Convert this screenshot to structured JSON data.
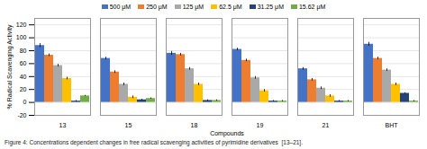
{
  "chart_data": {
    "type": "bar",
    "xlabel": "Compounds",
    "ylabel": "% Radical Scavenging Activity",
    "caption": "Figure 4: Concentrations dependent changes in free radical scavenging activities of pyrimidine derivatives  [13–21].",
    "categories": [
      "13",
      "15",
      "18",
      "19",
      "21",
      "BHT"
    ],
    "series": [
      {
        "name": "500 μM",
        "color": "#4472C4",
        "values": [
          88,
          68,
          76,
          82,
          52,
          90
        ],
        "errors": [
          3,
          2,
          3,
          2,
          2,
          3
        ]
      },
      {
        "name": "250 μM",
        "color": "#ED7D31",
        "values": [
          73,
          47,
          74,
          65,
          35,
          68
        ],
        "errors": [
          2,
          2,
          2,
          2,
          2,
          2
        ]
      },
      {
        "name": "125 μM",
        "color": "#A9A9A9",
        "values": [
          57,
          28,
          52,
          38,
          22,
          50
        ],
        "errors": [
          2,
          2,
          2,
          2,
          2,
          2
        ]
      },
      {
        "name": "62.5 μM",
        "color": "#FFC000",
        "values": [
          37,
          8,
          28,
          18,
          10,
          28
        ],
        "errors": [
          2,
          2,
          2,
          2,
          2,
          2
        ]
      },
      {
        "name": "31.25 μM",
        "color": "#264478",
        "values": [
          2,
          4,
          3,
          2,
          2,
          14
        ],
        "errors": [
          1,
          1,
          1,
          1,
          1,
          1
        ]
      },
      {
        "name": "15.62 μM",
        "color": "#70AD47",
        "values": [
          10,
          6,
          3,
          2,
          2,
          2
        ],
        "errors": [
          1,
          1,
          1,
          1,
          1,
          1
        ]
      }
    ],
    "ylim": [
      -20,
      130
    ],
    "yticks": [
      -20,
      0,
      20,
      40,
      60,
      80,
      100,
      120
    ],
    "grid": true,
    "legend": "top"
  }
}
